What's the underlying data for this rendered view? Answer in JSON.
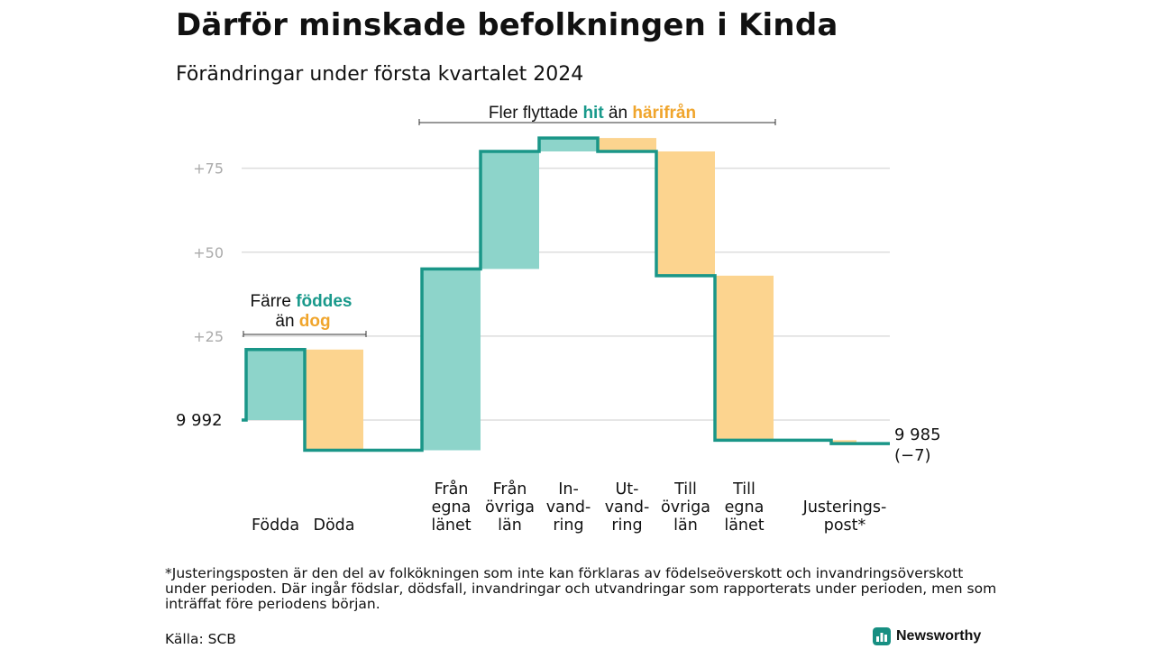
{
  "title": "Därför minskade befolkningen i Kinda",
  "subtitle": "Förändringar under första kvartalet 2024",
  "footnote": "*Justeringsposten är den del av folkökningen som inte kan förklaras av födelseöverskott och invandringsöverskott under perioden. Där ingår födslar, dödsfall, invandringar och utvandringar som rapporterats under perioden, men som inträffat före periodens början.",
  "source": "Källa: SCB",
  "brand": "Newsworthy",
  "colors": {
    "teal_fill": "#8dd4ca",
    "teal_line": "#1a9688",
    "teal_text": "#19998b",
    "orange_fill": "#fcd48f",
    "orange_text": "#f0a52c",
    "grid": "#dddddd",
    "tick": "#aaaaaa",
    "brand_icon": "#178f82"
  },
  "annotations": {
    "births": {
      "line1": "Färre",
      "hl1": "föddes",
      "line2": "än",
      "hl2": "dog"
    },
    "migration": {
      "prefix": "Fler flyttade",
      "hl1": "hit",
      "middle": "än",
      "hl2": "härifrån"
    }
  },
  "chart_data": {
    "type": "waterfall",
    "start_label": "9 992",
    "end_label": "9 985",
    "end_change": "(−7)",
    "y_ticks": [
      "+25",
      "+50",
      "+75"
    ],
    "ylim": [
      -10,
      85
    ],
    "steps": [
      {
        "label": "Födda",
        "delta": 21
      },
      {
        "label": "Döda",
        "delta": -30
      },
      {
        "label": "Från egna länet",
        "delta": 54
      },
      {
        "label": "Från övriga län",
        "delta": 35
      },
      {
        "label": "In-vand-ring",
        "delta": 4
      },
      {
        "label": "Ut-vand-ring",
        "delta": -4
      },
      {
        "label": "Till övriga län",
        "delta": -37
      },
      {
        "label": "Till egna länet",
        "delta": -49
      },
      {
        "label": "Justerings-post*",
        "delta": -1
      }
    ],
    "category_labels": [
      [
        "Födda"
      ],
      [
        "Döda"
      ],
      [
        "Från",
        "egna",
        "länet"
      ],
      [
        "Från",
        "övriga",
        "län"
      ],
      [
        "In-",
        "vand-",
        "ring"
      ],
      [
        "Ut-",
        "vand-",
        "ring"
      ],
      [
        "Till",
        "övriga",
        "län"
      ],
      [
        "Till",
        "egna",
        "länet"
      ],
      [
        "Justerings-",
        "post*"
      ]
    ]
  }
}
